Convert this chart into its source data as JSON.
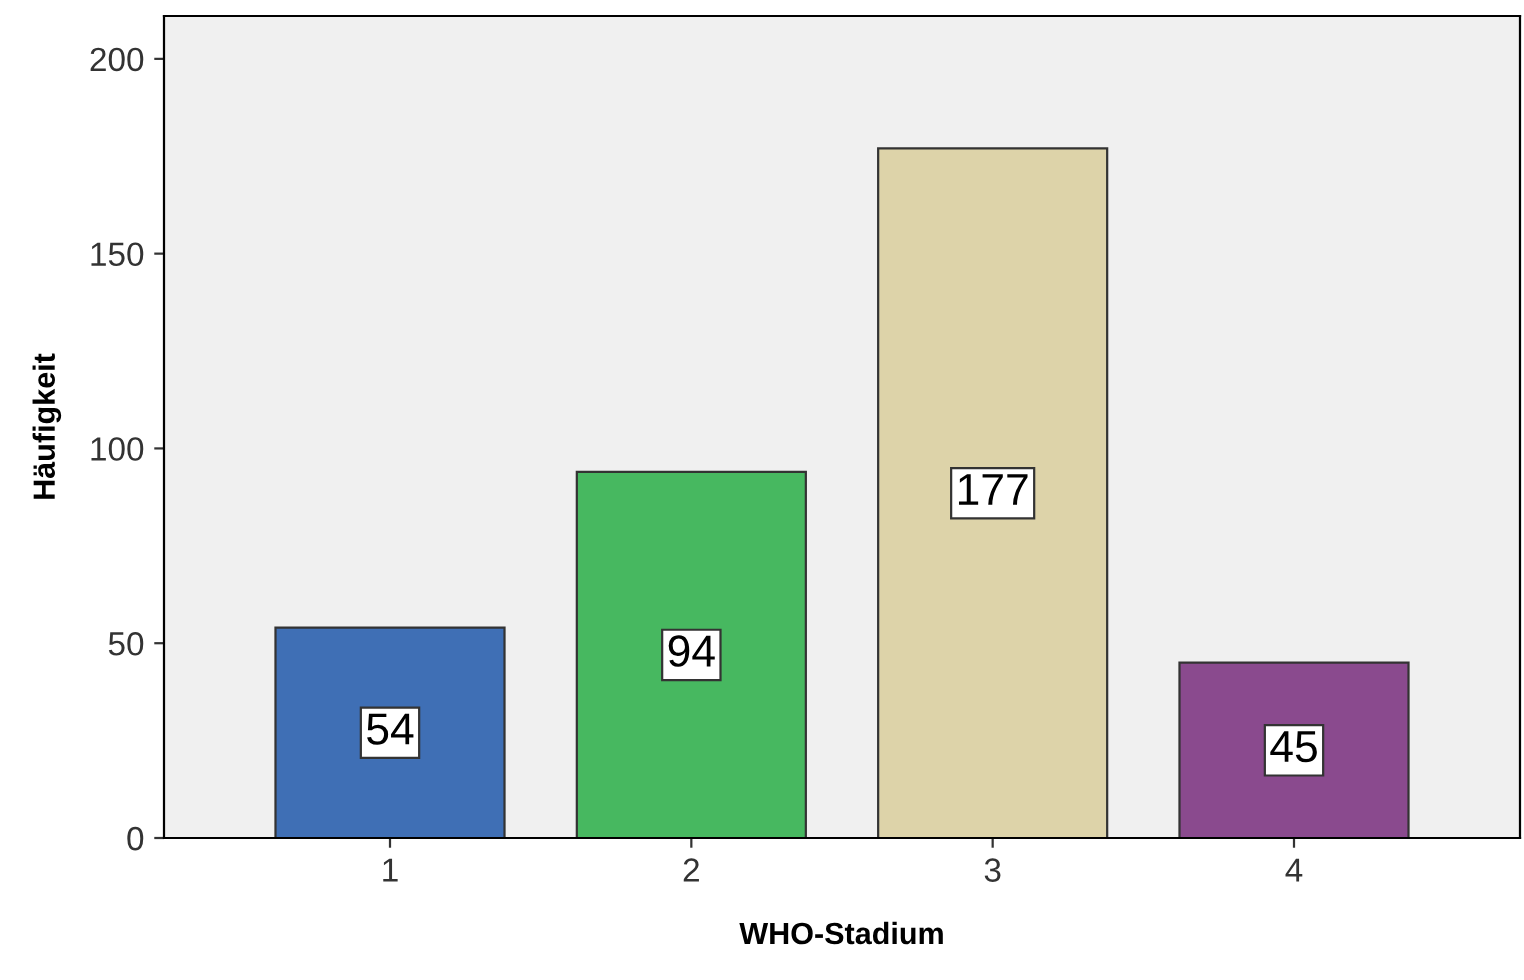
{
  "chart_data": {
    "type": "bar",
    "xlabel": "WHO-Stadium",
    "ylabel": "Häufigkeit",
    "categories": [
      "1",
      "2",
      "3",
      "4"
    ],
    "values": [
      54,
      94,
      177,
      45
    ],
    "colors": [
      "#3f6fb5",
      "#47b860",
      "#ddd3a9",
      "#8a4a8e"
    ],
    "ylim": [
      0,
      211
    ],
    "yticks": [
      0,
      50,
      100,
      150,
      200
    ],
    "grid": false,
    "data_labels": true
  }
}
